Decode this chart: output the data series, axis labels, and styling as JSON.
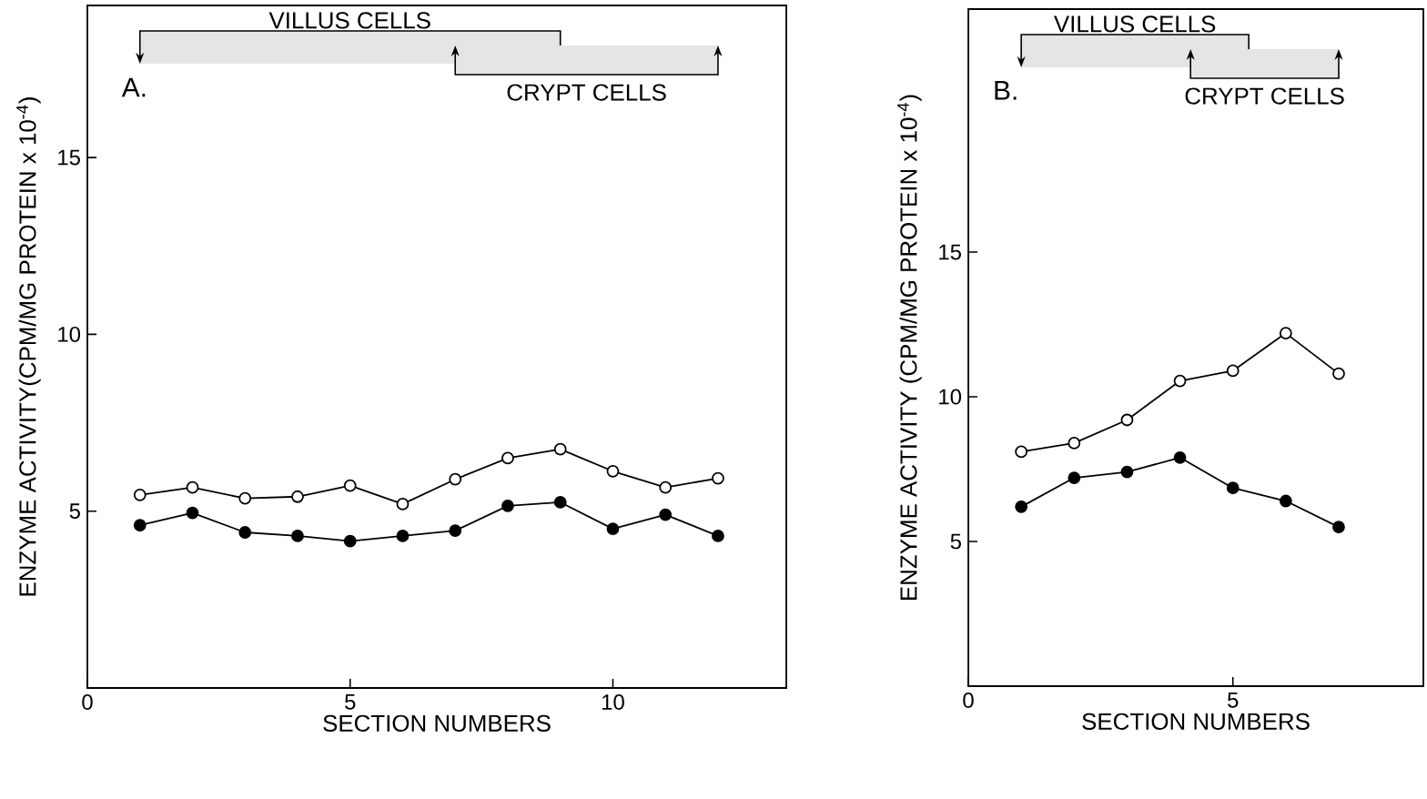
{
  "chart_data": [
    {
      "type": "line",
      "title": "A.",
      "xlabel": "SECTION NUMBERS",
      "ylabel": "ENZYME ACTIVITY(CPM/MG PROTEIN x 10$^{-4}$)",
      "x": [
        1,
        2,
        3,
        4,
        5,
        6,
        7,
        8,
        9,
        10,
        11,
        12
      ],
      "series": [
        {
          "color": "#000000",
          "values": [
            5.46,
            5.67,
            5.36,
            5.41,
            5.72,
            5.2,
            5.9,
            6.5,
            6.75,
            6.13,
            5.67,
            5.93
          ]
        },
        {
          "color": "#000000",
          "values": [
            4.6,
            4.95,
            4.4,
            4.3,
            4.15,
            4.3,
            4.45,
            5.15,
            5.25,
            4.5,
            4.9,
            4.3
          ]
        }
      ],
      "xlim": [
        0,
        13.3
      ],
      "ylim": [
        0,
        19.3
      ],
      "xticks": [
        0,
        5,
        10
      ],
      "yticks": [
        5,
        10,
        15
      ],
      "marker": "circle",
      "line_style": "solid",
      "bands": [
        {
          "axis": "x",
          "from": 1,
          "to": 9,
          "label": "VILLUS CELLS"
        },
        {
          "axis": "x",
          "from": 7,
          "to": 12,
          "label": "CRYPT CELLS"
        }
      ]
    },
    {
      "type": "line",
      "title": "B.",
      "xlabel": "SECTION NUMBERS",
      "ylabel": "ENZYME ACTIVITY (CPM/MG PROTEIN x 10$^{-4}$)",
      "x": [
        1,
        2,
        3,
        4,
        5,
        6,
        7
      ],
      "series": [
        {
          "color": "#000000",
          "values": [
            8.1,
            8.4,
            9.2,
            10.55,
            10.9,
            12.2,
            10.8
          ]
        },
        {
          "color": "#000000",
          "values": [
            6.2,
            7.2,
            7.4,
            7.9,
            6.85,
            6.4,
            5.5
          ]
        }
      ],
      "xlim": [
        0,
        8.6
      ],
      "ylim": [
        0,
        23.4
      ],
      "xticks": [
        0,
        5
      ],
      "yticks": [
        5,
        10,
        15
      ],
      "marker": "circle",
      "line_style": "solid",
      "bands": [
        {
          "axis": "x",
          "from": 1,
          "to": 5.3,
          "label": "VILLUS CELLS"
        },
        {
          "axis": "x",
          "from": 4.2,
          "to": 7,
          "label": "CRYPT CELLS"
        }
      ]
    }
  ]
}
